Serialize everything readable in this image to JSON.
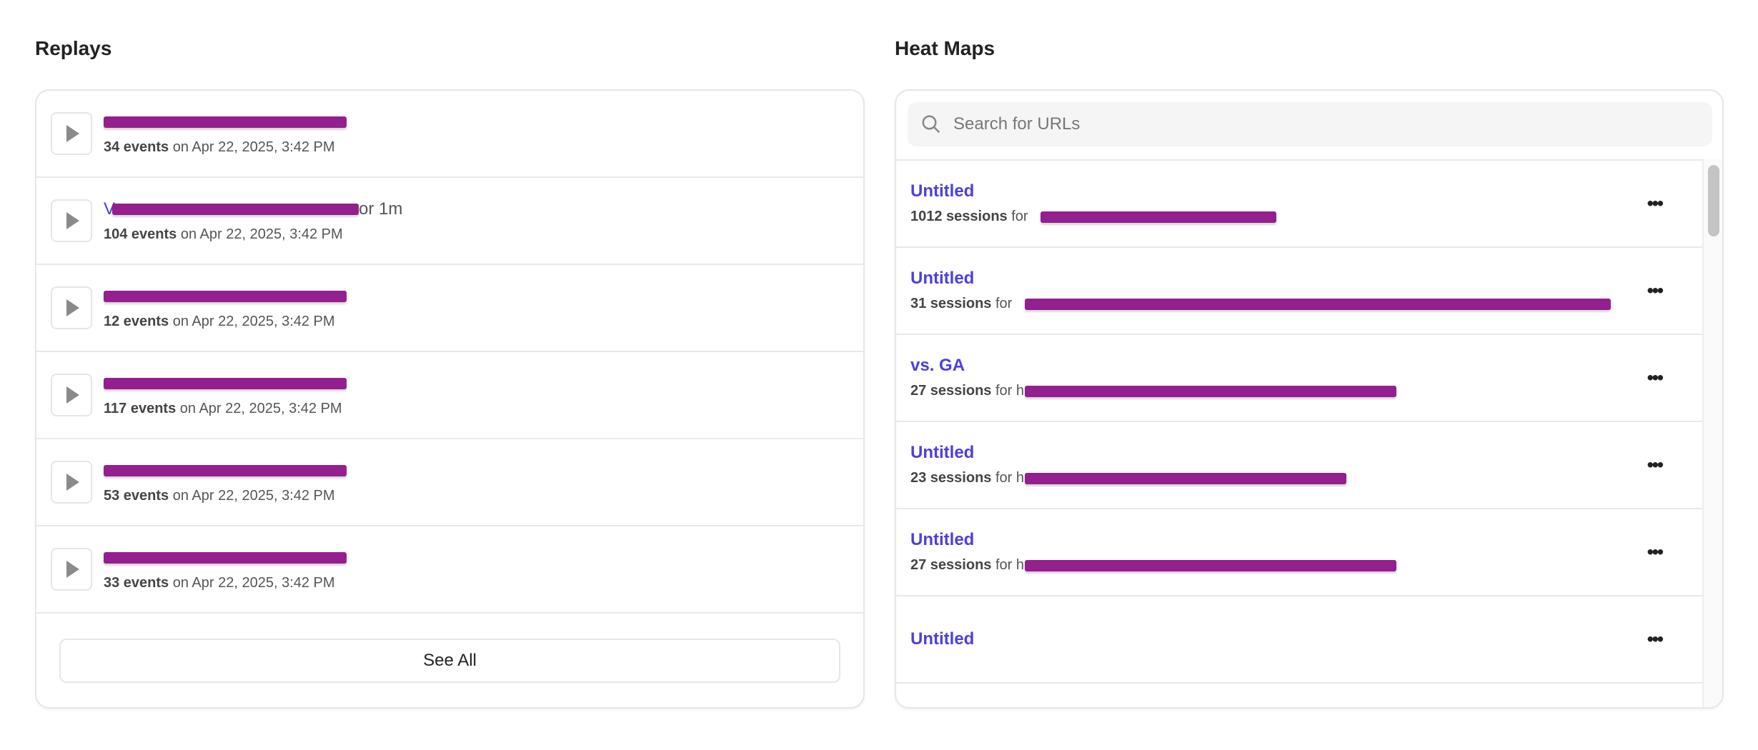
{
  "colors": {
    "link": "#4b3fe0",
    "redaction": "#93208e"
  },
  "replays": {
    "title": "Replays",
    "rows": [
      {
        "suffix": "",
        "events": "34 events",
        "date": "on Apr 22, 2025, 3:42 PM"
      },
      {
        "prefix": "V",
        "suffix": "or 1m",
        "events": "104 events",
        "date": "on Apr 22, 2025, 3:42 PM"
      },
      {
        "suffix": "",
        "events": "12 events",
        "date": "on Apr 22, 2025, 3:42 PM"
      },
      {
        "suffix": "",
        "events": "117 events",
        "date": "on Apr 22, 2025, 3:42 PM"
      },
      {
        "suffix": "",
        "events": "53 events",
        "date": "on Apr 22, 2025, 3:42 PM"
      },
      {
        "suffix": "",
        "events": "33 events",
        "date": "on Apr 22, 2025, 3:42 PM"
      }
    ],
    "see_all": "See All"
  },
  "heatmaps": {
    "title": "Heat Maps",
    "search_placeholder": "Search for URLs",
    "rows": [
      {
        "title": "Untitled",
        "sessions": "1012 sessions",
        "for": "for"
      },
      {
        "title": "Untitled",
        "sessions": "31 sessions",
        "for": "for"
      },
      {
        "title": "vs. GA",
        "sessions": "27 sessions",
        "for": "for h"
      },
      {
        "title": "Untitled",
        "sessions": "23 sessions",
        "for": "for h"
      },
      {
        "title": "Untitled",
        "sessions": "27 sessions",
        "for": "for h"
      },
      {
        "title": "Untitled"
      }
    ],
    "more_icon": "ellipsis-icon"
  }
}
